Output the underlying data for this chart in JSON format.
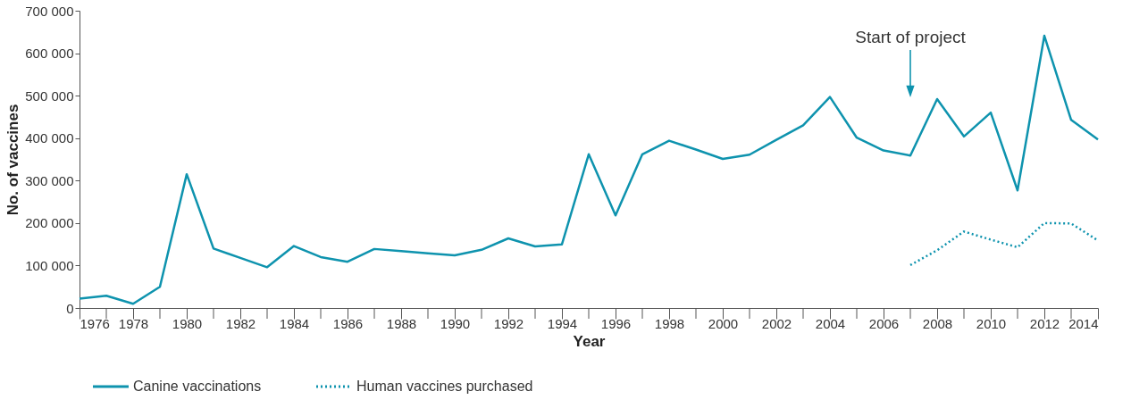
{
  "chart_data": {
    "type": "line",
    "xlabel": "Year",
    "ylabel": "No. of vaccines",
    "x": [
      1976,
      1977,
      1978,
      1979,
      1980,
      1981,
      1982,
      1983,
      1984,
      1985,
      1986,
      1987,
      1988,
      1989,
      1990,
      1991,
      1992,
      1993,
      1994,
      1995,
      1996,
      1997,
      1998,
      1999,
      2000,
      2001,
      2002,
      2003,
      2004,
      2005,
      2006,
      2007,
      2008,
      2009,
      2010,
      2011,
      2012,
      2013,
      2014
    ],
    "series": [
      {
        "name": "Canine vaccinations",
        "color": "#0e93ae",
        "line_style": "solid",
        "values": [
          22000,
          29000,
          10000,
          50000,
          315000,
          140000,
          118000,
          96000,
          146000,
          120000,
          109000,
          139000,
          134000,
          129000,
          124000,
          137000,
          164000,
          145000,
          150000,
          362000,
          218000,
          362000,
          394000,
          373000,
          351000,
          361000,
          396000,
          430000,
          497000,
          401000,
          371000,
          359000,
          492000,
          404000,
          460000,
          277000,
          641000,
          443000,
          397000
        ]
      },
      {
        "name": "Human vaccines purchased",
        "color": "#0e93ae",
        "line_style": "dotted",
        "values": [
          null,
          null,
          null,
          null,
          null,
          null,
          null,
          null,
          null,
          null,
          null,
          null,
          null,
          null,
          null,
          null,
          null,
          null,
          null,
          null,
          null,
          null,
          null,
          null,
          null,
          null,
          null,
          null,
          null,
          null,
          null,
          101000,
          136000,
          180000,
          161000,
          143000,
          200000,
          199000,
          159000
        ]
      }
    ],
    "xlim": [
      1976,
      2014
    ],
    "xticks": [
      1976,
      {
        "value": 1977,
        "label": null
      },
      1978,
      {
        "value": 1979,
        "label": null
      },
      1980,
      {
        "value": 1981,
        "label": null
      },
      1982,
      {
        "value": 1983,
        "label": null
      },
      1984,
      {
        "value": 1985,
        "label": null
      },
      1986,
      {
        "value": 1987,
        "label": null
      },
      1988,
      {
        "value": 1989,
        "label": null
      },
      1990,
      {
        "value": 1991,
        "label": null
      },
      1992,
      {
        "value": 1993,
        "label": null
      },
      1994,
      {
        "value": 1995,
        "label": null
      },
      1996,
      {
        "value": 1997,
        "label": null
      },
      1998,
      {
        "value": 1999,
        "label": null
      },
      2000,
      {
        "value": 2001,
        "label": null
      },
      2002,
      {
        "value": 2003,
        "label": null
      },
      2004,
      {
        "value": 2005,
        "label": null
      },
      2006,
      {
        "value": 2007,
        "label": null
      },
      2008,
      {
        "value": 2009,
        "label": null
      },
      2010,
      {
        "value": 2011,
        "label": null
      },
      2012,
      {
        "value": 2013,
        "label": null
      },
      2014
    ],
    "ylim": [
      0,
      700000
    ],
    "yticks": [
      0,
      {
        "value": 100000,
        "label": "100 000"
      },
      {
        "value": 200000,
        "label": "200 000"
      },
      {
        "value": 300000,
        "label": "300 000"
      },
      {
        "value": 400000,
        "label": "400 000"
      },
      {
        "value": 500000,
        "label": "500 000"
      },
      {
        "value": 600000,
        "label": "600 000"
      },
      {
        "value": 700000,
        "label": "700 000"
      }
    ],
    "annotations": [
      "Start of project"
    ],
    "grid": false,
    "legend": "bottom left",
    "marker": "none"
  }
}
